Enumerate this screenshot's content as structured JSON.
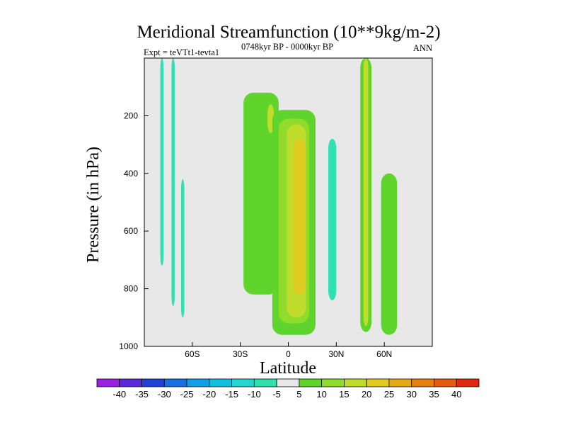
{
  "chart_data": {
    "type": "contour",
    "title": "Meridional Streamfunction (10**9kg/m-2)",
    "subtitle": "0748kyr BP - 0000kyr BP",
    "left_label": "Expt = teVTt1-tevta1",
    "right_label": "ANN",
    "xlabel": "Latitude",
    "ylabel": "Pressure (in hPa)",
    "xlim": [
      -90,
      90
    ],
    "ylim": [
      0,
      1000
    ],
    "y_inverted": true,
    "x_ticks": [
      {
        "value": -60,
        "label": "60S"
      },
      {
        "value": -30,
        "label": "30S"
      },
      {
        "value": 0,
        "label": "0"
      },
      {
        "value": 30,
        "label": "30N"
      },
      {
        "value": 60,
        "label": "60N"
      }
    ],
    "y_ticks": [
      {
        "value": 200,
        "label": "200"
      },
      {
        "value": 400,
        "label": "400"
      },
      {
        "value": 600,
        "label": "600"
      },
      {
        "value": 800,
        "label": "800"
      },
      {
        "value": 1000,
        "label": "1000"
      }
    ],
    "background_color": "#e8e8e8",
    "colorbar": {
      "levels": [
        "-40",
        "-35",
        "-30",
        "-25",
        "-20",
        "-15",
        "-10",
        "-5",
        "5",
        "10",
        "15",
        "20",
        "25",
        "30",
        "35",
        "40"
      ],
      "colors": [
        "#9a20e0",
        "#5a2ad8",
        "#2040d8",
        "#1a70e0",
        "#10a0e8",
        "#10c0e0",
        "#20d8d0",
        "#30e0b0",
        "#e8e8e8",
        "#5ed42c",
        "#90dc2c",
        "#c0dc2c",
        "#e0cc20",
        "#e6aa14",
        "#e68010",
        "#e65a10",
        "#e02810"
      ]
    },
    "regions": [
      {
        "name": "sh-negative-cell-1",
        "band": "-10 to -5",
        "lat": [
          -80,
          -78
        ],
        "p": [
          0,
          720
        ]
      },
      {
        "name": "sh-negative-cell-2",
        "band": "-10 to -5",
        "lat": [
          -73,
          -71
        ],
        "p": [
          0,
          860
        ]
      },
      {
        "name": "sh-negative-cell-3",
        "band": "-10 to -5",
        "lat": [
          -67,
          -65
        ],
        "p": [
          420,
          900
        ]
      },
      {
        "name": "nh-negative-cell",
        "band": "-10 to -5",
        "lat": [
          25,
          30
        ],
        "p": [
          280,
          840
        ]
      },
      {
        "name": "upper-positive-cell",
        "band": "5 to 10",
        "lat": [
          -28,
          -6
        ],
        "p": [
          120,
          820
        ]
      },
      {
        "name": "upper-positive-core",
        "band": "15 to 20",
        "lat": [
          -13,
          -9
        ],
        "p": [
          160,
          260
        ]
      },
      {
        "name": "main-positive-cell",
        "band": "5 to 10",
        "lat": [
          -10,
          17
        ],
        "p": [
          180,
          960
        ]
      },
      {
        "name": "main-positive-inner",
        "band": "10 to 15",
        "lat": [
          -6,
          13
        ],
        "p": [
          210,
          920
        ]
      },
      {
        "name": "main-positive-mid",
        "band": "15 to 20",
        "lat": [
          -1,
          11
        ],
        "p": [
          230,
          900
        ]
      },
      {
        "name": "main-positive-core",
        "band": "20 to 25",
        "lat": [
          3,
          11
        ],
        "p": [
          280,
          820
        ]
      },
      {
        "name": "nh-positive-column",
        "band": "5 to 10",
        "lat": [
          45,
          52
        ],
        "p": [
          0,
          950
        ]
      },
      {
        "name": "nh-positive-column-core",
        "band": "15 to 20",
        "lat": [
          47,
          50
        ],
        "p": [
          0,
          930
        ]
      },
      {
        "name": "nh-positive-lower",
        "band": "5 to 10",
        "lat": [
          58,
          68
        ],
        "p": [
          400,
          960
        ]
      }
    ]
  }
}
